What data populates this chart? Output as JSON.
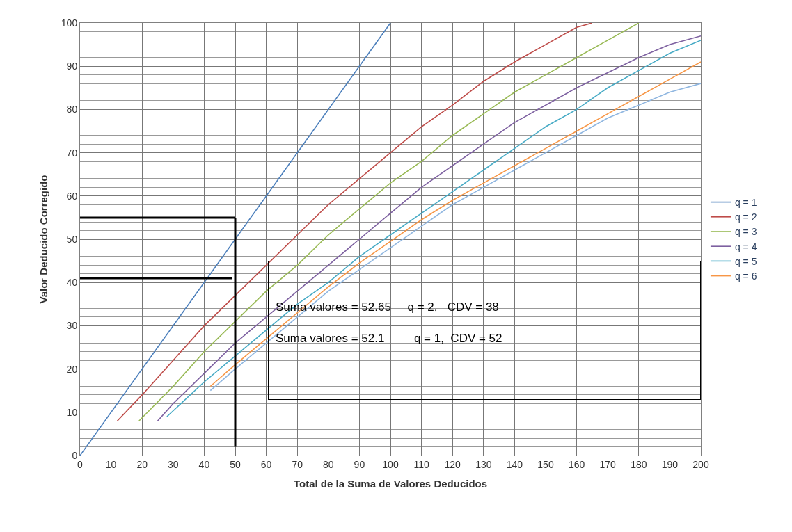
{
  "chart_data": {
    "type": "line",
    "xlabel": "Total de la Suma de Valores Deducidos",
    "ylabel": "Valor Deducido Corregido",
    "xlim": [
      0,
      200
    ],
    "xticks": [
      0,
      10,
      20,
      30,
      40,
      50,
      60,
      70,
      80,
      90,
      100,
      110,
      120,
      130,
      140,
      150,
      160,
      170,
      180,
      190,
      200
    ],
    "ylim": [
      0,
      100
    ],
    "yticks": [
      0,
      10,
      20,
      30,
      40,
      50,
      60,
      70,
      80,
      90,
      100
    ],
    "grid": true,
    "legend": "right",
    "marker": "none",
    "line_style": "solid",
    "series": [
      {
        "name": "q = 1",
        "color": "#4a7ebb",
        "x": [
          0,
          100
        ],
        "values": [
          0,
          100
        ]
      },
      {
        "name": "q = 2",
        "color": "#be4b48",
        "x": [
          12,
          20,
          30,
          40,
          50,
          60,
          70,
          80,
          90,
          100,
          110,
          120,
          130,
          140,
          150,
          160,
          165
        ],
        "values": [
          8,
          14,
          22,
          30,
          37,
          44,
          51,
          58,
          64,
          70,
          76,
          81,
          86.5,
          91,
          95,
          99,
          100
        ]
      },
      {
        "name": "q = 3",
        "color": "#98b954",
        "x": [
          19,
          30,
          40,
          50,
          60,
          70,
          80,
          90,
          100,
          110,
          120,
          130,
          140,
          150,
          160,
          170,
          180
        ],
        "values": [
          8,
          16,
          24,
          31,
          38,
          44,
          51,
          57,
          63,
          68,
          74,
          79,
          84,
          88,
          92,
          96,
          100
        ]
      },
      {
        "name": "q = 4",
        "color": "#7d60a0",
        "x": [
          25,
          30,
          40,
          50,
          60,
          70,
          80,
          90,
          100,
          110,
          120,
          130,
          140,
          150,
          160,
          170,
          180,
          190,
          200
        ],
        "values": [
          8,
          12,
          19,
          26,
          32,
          38,
          44,
          50,
          56,
          62,
          67,
          72,
          77,
          81,
          85,
          88.5,
          92,
          95,
          97
        ]
      },
      {
        "name": "q = 5",
        "color": "#46aac5",
        "x": [
          28,
          40,
          50,
          60,
          70,
          80,
          90,
          100,
          110,
          120,
          130,
          140,
          150,
          160,
          170,
          180,
          190,
          200
        ],
        "values": [
          9,
          17,
          23,
          29,
          35,
          40,
          46,
          51,
          56,
          61,
          66,
          71,
          76,
          80,
          85,
          89,
          93,
          96
        ]
      },
      {
        "name": "q = 6",
        "color": "#f79646",
        "x": [
          42,
          50,
          60,
          70,
          80,
          90,
          100,
          110,
          120,
          130,
          140,
          150,
          160,
          170,
          180,
          190,
          200
        ],
        "values": [
          16,
          21,
          27,
          33,
          39,
          44.5,
          49.5,
          54.5,
          59,
          63,
          67,
          71,
          75,
          79,
          83,
          87,
          91
        ]
      },
      {
        "color": "#8fb6e0",
        "x": [
          42,
          50,
          60,
          70,
          80,
          90,
          100,
          110,
          120,
          130,
          140,
          150,
          160,
          170,
          180,
          190,
          200
        ],
        "values": [
          15,
          20,
          26,
          32,
          38,
          43,
          48,
          53,
          58,
          62,
          66,
          70,
          74,
          78,
          81,
          84,
          86
        ]
      },
      {
        "color": "#000000",
        "x": [
          0,
          50
        ],
        "values": [
          55,
          55
        ]
      },
      {
        "color": "#000000",
        "x": [
          50,
          50
        ],
        "values": [
          55,
          2
        ]
      },
      {
        "color": "#000000",
        "x": [
          0,
          49
        ],
        "values": [
          41,
          41
        ]
      }
    ],
    "annotations": [
      "Suma valores = 52.65     q = 2,   CDV = 38",
      "Suma valores = 52.1         q = 1,  CDV = 52"
    ]
  }
}
